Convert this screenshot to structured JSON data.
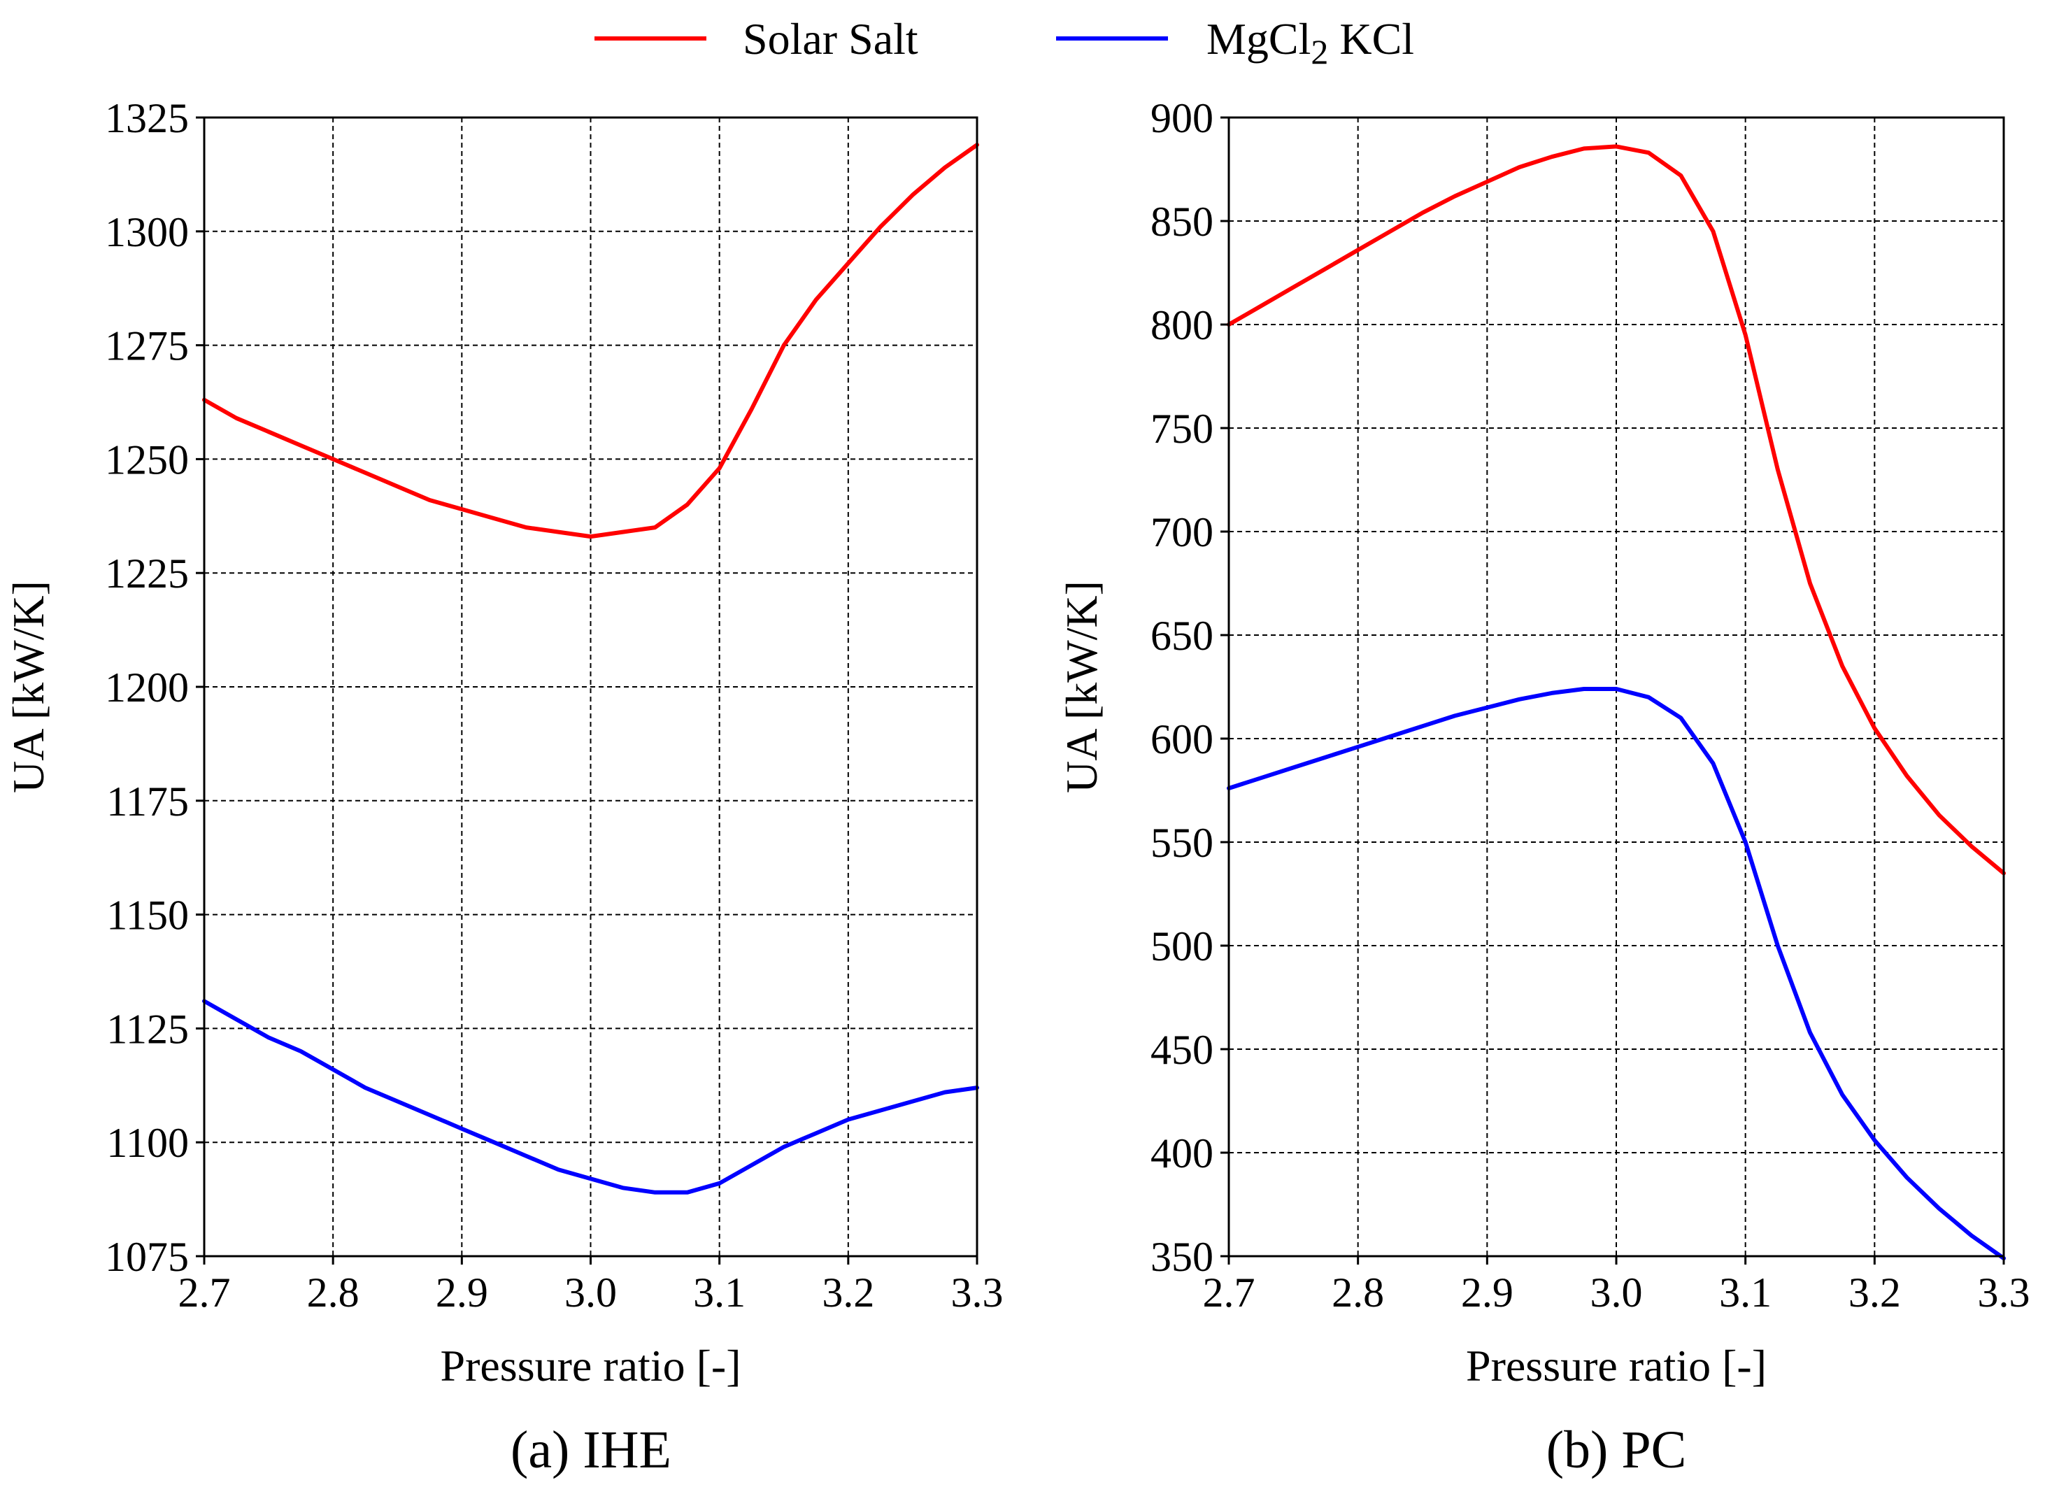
{
  "legend": {
    "placement": "top-center",
    "entries": [
      {
        "name": "Solar Salt",
        "color": "#ff0000"
      },
      {
        "name": "MgCl",
        "subscript": "2",
        "suffix": " KCl",
        "color": "#0000ff"
      }
    ]
  },
  "chart_data": [
    {
      "type": "line",
      "caption": "(a) IHE",
      "xlabel": "Pressure ratio [-]",
      "ylabel": "UA  [kW/K]",
      "xlim": [
        2.7,
        3.3
      ],
      "ylim": [
        1075,
        1325
      ],
      "xticks": [
        2.7,
        2.8,
        2.9,
        3.0,
        3.1,
        3.2,
        3.3
      ],
      "xtick_labels": [
        "2.7",
        "2.8",
        "2.9",
        "3.0",
        "3.1",
        "3.2",
        "3.3"
      ],
      "yticks": [
        1075,
        1100,
        1125,
        1150,
        1175,
        1200,
        1225,
        1250,
        1275,
        1300,
        1325
      ],
      "ytick_labels": [
        "1075",
        "1100",
        "1125",
        "1150",
        "1175",
        "1200",
        "1225",
        "1250",
        "1275",
        "1300",
        "1325"
      ],
      "grid": true,
      "x": [
        2.7,
        2.725,
        2.75,
        2.775,
        2.8,
        2.825,
        2.85,
        2.875,
        2.9,
        2.925,
        2.95,
        2.975,
        3.0,
        3.025,
        3.05,
        3.075,
        3.1,
        3.125,
        3.15,
        3.175,
        3.2,
        3.225,
        3.25,
        3.275,
        3.3
      ],
      "series": [
        {
          "name": "Solar Salt",
          "color": "#ff0000",
          "values": [
            1263,
            1259,
            1256,
            1253,
            1250,
            1247,
            1244,
            1241,
            1239,
            1237,
            1235,
            1234,
            1233,
            1234,
            1235,
            1240,
            1248,
            1261,
            1275,
            1285,
            1293,
            1301,
            1308,
            1314,
            1319
          ]
        },
        {
          "name": "MgCl2 KCl",
          "color": "#0000ff",
          "values": [
            1131,
            1127,
            1123,
            1120,
            1116,
            1112,
            1109,
            1106,
            1103,
            1100,
            1097,
            1094,
            1092,
            1090,
            1089,
            1089,
            1091,
            1095,
            1099,
            1102,
            1105,
            1107,
            1109,
            1111,
            1112
          ]
        }
      ]
    },
    {
      "type": "line",
      "caption": "(b) PC",
      "xlabel": "Pressure ratio [-]",
      "ylabel": "UA  [kW/K]",
      "xlim": [
        2.7,
        3.3
      ],
      "ylim": [
        350,
        900
      ],
      "xticks": [
        2.7,
        2.8,
        2.9,
        3.0,
        3.1,
        3.2,
        3.3
      ],
      "xtick_labels": [
        "2.7",
        "2.8",
        "2.9",
        "3.0",
        "3.1",
        "3.2",
        "3.3"
      ],
      "yticks": [
        350,
        400,
        450,
        500,
        550,
        600,
        650,
        700,
        750,
        800,
        850,
        900
      ],
      "ytick_labels": [
        "350",
        "400",
        "450",
        "500",
        "550",
        "600",
        "650",
        "700",
        "750",
        "800",
        "850",
        "900"
      ],
      "grid": true,
      "x": [
        2.7,
        2.725,
        2.75,
        2.775,
        2.8,
        2.825,
        2.85,
        2.875,
        2.9,
        2.925,
        2.95,
        2.975,
        3.0,
        3.025,
        3.05,
        3.075,
        3.1,
        3.125,
        3.15,
        3.175,
        3.2,
        3.225,
        3.25,
        3.275,
        3.3
      ],
      "series": [
        {
          "name": "Solar Salt",
          "color": "#ff0000",
          "values": [
            800,
            809,
            818,
            827,
            836,
            845,
            854,
            862,
            869,
            876,
            881,
            885,
            886,
            883,
            872,
            845,
            795,
            730,
            675,
            635,
            605,
            582,
            563,
            548,
            535
          ]
        },
        {
          "name": "MgCl2 KCl",
          "color": "#0000ff",
          "values": [
            576,
            581,
            586,
            591,
            596,
            601,
            606,
            611,
            615,
            619,
            622,
            624,
            624,
            620,
            610,
            588,
            550,
            500,
            458,
            428,
            406,
            388,
            373,
            360,
            349
          ]
        }
      ]
    }
  ]
}
